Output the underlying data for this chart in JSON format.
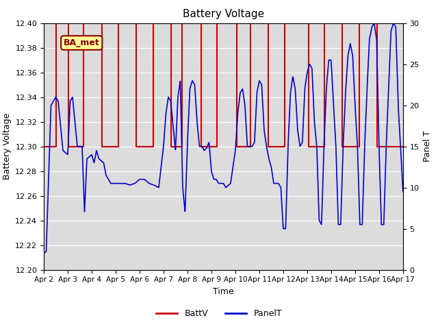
{
  "title": "Battery Voltage",
  "xlabel": "Time",
  "ylabel_left": "Battery Voltage",
  "ylabel_right": "Panel T",
  "ylim_left": [
    12.2,
    12.4
  ],
  "ylim_right": [
    0,
    30
  ],
  "background_color": "#ffffff",
  "plot_bg_color": "#dcdcdc",
  "annotation_text": "BA_met",
  "annotation_bg": "#ffff99",
  "annotation_border": "#8b0000",
  "legend_labels": [
    "BattV",
    "PanelT"
  ],
  "batt_color": "#cc0000",
  "panel_color": "#0000cc",
  "batt_step_times": [
    2.0,
    2.5,
    2.52,
    3.0,
    3.02,
    3.65,
    3.67,
    4.4,
    4.42,
    5.1,
    5.12,
    5.85,
    5.87,
    6.55,
    6.57,
    7.3,
    7.32,
    7.75,
    7.77,
    8.55,
    8.57,
    9.2,
    9.22,
    10.05,
    10.07,
    10.6,
    10.62,
    11.35,
    11.37,
    12.05,
    12.07,
    13.05,
    13.07,
    13.7,
    13.72,
    14.45,
    14.47,
    15.15,
    15.17,
    15.9,
    15.92,
    17.0
  ],
  "batt_step_vals": [
    12.3,
    12.3,
    12.4,
    12.4,
    12.3,
    12.3,
    12.4,
    12.4,
    12.3,
    12.3,
    12.4,
    12.4,
    12.3,
    12.3,
    12.4,
    12.4,
    12.3,
    12.3,
    12.4,
    12.4,
    12.3,
    12.3,
    12.4,
    12.4,
    12.3,
    12.3,
    12.4,
    12.4,
    12.3,
    12.3,
    12.4,
    12.4,
    12.3,
    12.3,
    12.4,
    12.4,
    12.3,
    12.3,
    12.4,
    12.4,
    12.3,
    12.3
  ],
  "xtick_labels": [
    "Apr 2",
    "Apr 3",
    "Apr 4",
    "Apr 5",
    "Apr 6",
    "Apr 7",
    "Apr 8",
    "Apr 9",
    "Apr 10",
    "Apr 11",
    "Apr 12",
    "Apr 13",
    "Apr 14",
    "Apr 15",
    "Apr 16",
    "Apr 17"
  ],
  "xtick_positions": [
    2,
    3,
    4,
    5,
    6,
    7,
    8,
    9,
    10,
    11,
    12,
    13,
    14,
    15,
    16,
    17
  ],
  "yticks_left": [
    12.2,
    12.22,
    12.24,
    12.26,
    12.28,
    12.3,
    12.32,
    12.34,
    12.36,
    12.38,
    12.4
  ],
  "yticks_right": [
    0,
    5,
    10,
    15,
    20,
    25,
    30
  ],
  "panel_t_knots": [
    [
      2.0,
      2.0
    ],
    [
      2.1,
      2.2
    ],
    [
      2.3,
      20.0
    ],
    [
      2.5,
      21.0
    ],
    [
      2.6,
      20.5
    ],
    [
      2.8,
      14.5
    ],
    [
      3.0,
      14.0
    ],
    [
      3.1,
      20.5
    ],
    [
      3.2,
      21.0
    ],
    [
      3.4,
      15.0
    ],
    [
      3.6,
      15.0
    ],
    [
      3.7,
      7.0
    ],
    [
      3.8,
      13.5
    ],
    [
      4.0,
      14.0
    ],
    [
      4.1,
      13.0
    ],
    [
      4.2,
      14.5
    ],
    [
      4.3,
      13.5
    ],
    [
      4.5,
      13.0
    ],
    [
      4.6,
      11.5
    ],
    [
      4.8,
      10.5
    ],
    [
      5.0,
      10.5
    ],
    [
      5.2,
      10.5
    ],
    [
      5.4,
      10.5
    ],
    [
      5.6,
      10.3
    ],
    [
      5.8,
      10.5
    ],
    [
      6.0,
      11.0
    ],
    [
      6.2,
      11.0
    ],
    [
      6.4,
      10.5
    ],
    [
      6.6,
      10.3
    ],
    [
      6.8,
      10.0
    ],
    [
      7.0,
      15.0
    ],
    [
      7.1,
      19.0
    ],
    [
      7.2,
      21.0
    ],
    [
      7.3,
      20.5
    ],
    [
      7.5,
      14.5
    ],
    [
      7.6,
      21.0
    ],
    [
      7.7,
      23.0
    ],
    [
      7.8,
      10.0
    ],
    [
      7.9,
      7.0
    ],
    [
      8.0,
      15.5
    ],
    [
      8.1,
      22.0
    ],
    [
      8.2,
      23.0
    ],
    [
      8.3,
      22.5
    ],
    [
      8.4,
      18.0
    ],
    [
      8.5,
      15.0
    ],
    [
      8.6,
      15.0
    ],
    [
      8.7,
      14.5
    ],
    [
      8.8,
      14.8
    ],
    [
      8.9,
      15.5
    ],
    [
      9.0,
      12.0
    ],
    [
      9.1,
      11.0
    ],
    [
      9.2,
      11.0
    ],
    [
      9.3,
      10.5
    ],
    [
      9.4,
      10.5
    ],
    [
      9.5,
      10.5
    ],
    [
      9.6,
      10.0
    ],
    [
      9.8,
      10.5
    ],
    [
      10.0,
      14.5
    ],
    [
      10.1,
      19.0
    ],
    [
      10.2,
      21.5
    ],
    [
      10.3,
      22.0
    ],
    [
      10.4,
      20.0
    ],
    [
      10.5,
      15.0
    ],
    [
      10.7,
      15.0
    ],
    [
      10.8,
      15.5
    ],
    [
      10.9,
      21.5
    ],
    [
      11.0,
      23.0
    ],
    [
      11.1,
      22.5
    ],
    [
      11.2,
      17.0
    ],
    [
      11.3,
      15.0
    ],
    [
      11.4,
      13.5
    ],
    [
      11.5,
      12.5
    ],
    [
      11.6,
      10.5
    ],
    [
      11.7,
      10.5
    ],
    [
      11.8,
      10.5
    ],
    [
      11.9,
      10.0
    ],
    [
      12.0,
      5.0
    ],
    [
      12.1,
      5.0
    ],
    [
      12.2,
      15.0
    ],
    [
      12.3,
      21.5
    ],
    [
      12.4,
      23.5
    ],
    [
      12.5,
      22.0
    ],
    [
      12.6,
      17.0
    ],
    [
      12.7,
      15.0
    ],
    [
      12.8,
      15.5
    ],
    [
      12.9,
      22.0
    ],
    [
      13.0,
      24.0
    ],
    [
      13.1,
      25.0
    ],
    [
      13.2,
      24.5
    ],
    [
      13.3,
      18.0
    ],
    [
      13.4,
      15.0
    ],
    [
      13.5,
      6.0
    ],
    [
      13.6,
      5.5
    ],
    [
      13.7,
      15.0
    ],
    [
      13.8,
      22.0
    ],
    [
      13.9,
      25.5
    ],
    [
      14.0,
      25.5
    ],
    [
      14.1,
      20.0
    ],
    [
      14.2,
      15.0
    ],
    [
      14.3,
      5.5
    ],
    [
      14.4,
      5.5
    ],
    [
      14.5,
      15.0
    ],
    [
      14.6,
      21.5
    ],
    [
      14.7,
      26.0
    ],
    [
      14.8,
      27.5
    ],
    [
      14.9,
      26.0
    ],
    [
      15.0,
      20.0
    ],
    [
      15.1,
      15.0
    ],
    [
      15.2,
      5.5
    ],
    [
      15.3,
      5.5
    ],
    [
      15.4,
      15.0
    ],
    [
      15.5,
      22.0
    ],
    [
      15.6,
      28.0
    ],
    [
      15.7,
      29.5
    ],
    [
      15.8,
      30.0
    ],
    [
      15.9,
      28.0
    ],
    [
      16.0,
      15.0
    ],
    [
      16.1,
      5.5
    ],
    [
      16.2,
      5.5
    ],
    [
      16.3,
      15.0
    ],
    [
      16.4,
      22.0
    ],
    [
      16.5,
      29.0
    ],
    [
      16.6,
      30.0
    ],
    [
      16.7,
      29.5
    ],
    [
      16.8,
      20.0
    ],
    [
      16.9,
      15.0
    ],
    [
      17.0,
      9.5
    ]
  ]
}
